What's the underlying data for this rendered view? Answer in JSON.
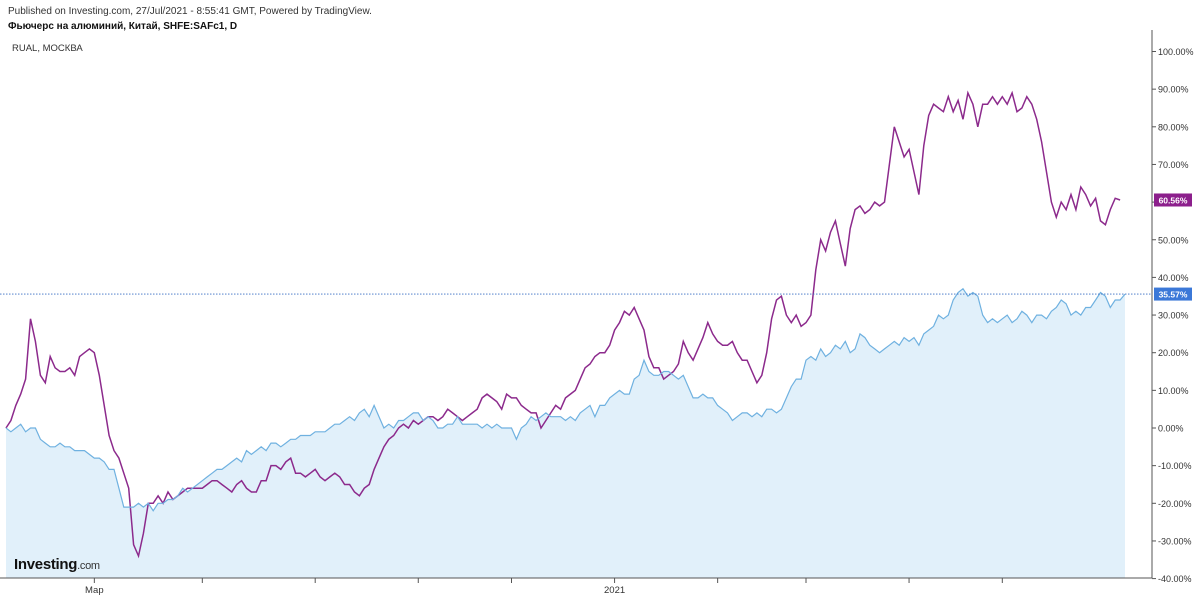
{
  "header": {
    "published": "Published on Investing.com, 27/Jul/2021 - 8:55:41 GMT, Powered by TradingView.",
    "symbol": "Фьючерс на алюминий, Китай, SHFE:SAFc1, D",
    "compare": "RUAL, МОСКВА"
  },
  "logo": {
    "brand": "Investing",
    "domain": ".com"
  },
  "chart_data": {
    "type": "line",
    "ylim": [
      -40,
      105
    ],
    "yticks": [
      "100.00%",
      "90.00%",
      "80.00%",
      "70.00%",
      "60.00%",
      "50.00%",
      "40.00%",
      "30.00%",
      "20.00%",
      "10.00%",
      "0.00%",
      "-10.00%",
      "-20.00%",
      "-30.00%",
      "-40.00%"
    ],
    "ytick_values": [
      100,
      90,
      80,
      70,
      60,
      50,
      40,
      30,
      20,
      10,
      0,
      -10,
      -20,
      -30,
      -40
    ],
    "x_labels": [
      {
        "label": "Мар",
        "i": 18
      },
      {
        "label": "2021",
        "i": 124
      }
    ],
    "x_tick_indices": [
      18,
      40,
      63,
      84,
      103,
      124,
      145,
      163,
      184,
      203
    ],
    "series": [
      {
        "name": "Фьючерс на алюминий, Китай, SHFE:SAFc1, D",
        "color": "#6fb1e0",
        "fill": "#e1f0fa",
        "last_label": "35.57%",
        "last_value": 35.57,
        "values": [
          0,
          -1,
          0,
          1,
          -1,
          0,
          0,
          -3,
          -4,
          -5,
          -5,
          -4,
          -5,
          -5,
          -6,
          -6,
          -6,
          -7,
          -8,
          -8,
          -9,
          -11,
          -11,
          -16,
          -21,
          -21,
          -21,
          -20,
          -21,
          -20,
          -22,
          -20,
          -20,
          -19,
          -19,
          -18,
          -16,
          -17,
          -16,
          -15,
          -14,
          -13,
          -12,
          -11,
          -11,
          -10,
          -9,
          -8,
          -9,
          -6,
          -7,
          -6,
          -5,
          -6,
          -4,
          -4,
          -5,
          -4,
          -3,
          -3,
          -2,
          -2,
          -2,
          -1,
          -1,
          -1,
          0,
          1,
          1,
          2,
          3,
          2,
          4,
          5,
          3,
          6,
          3,
          0,
          1,
          0,
          2,
          2,
          3,
          4,
          4,
          2,
          3,
          2,
          0,
          0,
          1,
          1,
          3,
          1,
          1,
          1,
          1,
          0,
          1,
          0,
          1,
          0,
          0,
          0,
          -3,
          0,
          1,
          3,
          2,
          3,
          4,
          3,
          3,
          3,
          2,
          3,
          2,
          4,
          5,
          6,
          3,
          6,
          6,
          8,
          9,
          10,
          9,
          9,
          13,
          14,
          18,
          15,
          14,
          14,
          15,
          15,
          14,
          13,
          14,
          11,
          8,
          8,
          9,
          8,
          8,
          6,
          5,
          4,
          2,
          3,
          4,
          4,
          3,
          4,
          3,
          5,
          5,
          4,
          5,
          8,
          11,
          13,
          13,
          18,
          19,
          18,
          21,
          19,
          20,
          22,
          21,
          23,
          20,
          21,
          25,
          24,
          22,
          21,
          20,
          21,
          22,
          23,
          22,
          24,
          23,
          24,
          22,
          25,
          26,
          27,
          30,
          29,
          30,
          34,
          36,
          37,
          35,
          36,
          35,
          30,
          28,
          29,
          28,
          29,
          30,
          28,
          29,
          31,
          30,
          28,
          30,
          30,
          29,
          31,
          32,
          34,
          33,
          30,
          31,
          30,
          32,
          32,
          34,
          36,
          35,
          32,
          34,
          34,
          35.57
        ]
      },
      {
        "name": "RUAL, МОСКВА",
        "color": "#8c2a8c",
        "fill_color": "#b48ec0",
        "last_label": "60.56%",
        "last_value": 60.56,
        "values": [
          0,
          2,
          6,
          9,
          13,
          29,
          23,
          14,
          12,
          19,
          16,
          15,
          15,
          16,
          14,
          19,
          20,
          21,
          20,
          14,
          6,
          -2,
          -6,
          -8,
          -12,
          -16,
          -31,
          -34,
          -28,
          -20,
          -20,
          -18,
          -20,
          -17,
          -19,
          -18,
          -17,
          -16,
          -16,
          -16,
          -16,
          -15,
          -14,
          -14,
          -15,
          -16,
          -17,
          -15,
          -14,
          -16,
          -17,
          -17,
          -14,
          -14,
          -10,
          -10,
          -11,
          -9,
          -8,
          -12,
          -12,
          -13,
          -12,
          -11,
          -13,
          -14,
          -13,
          -12,
          -13,
          -15,
          -15,
          -17,
          -18,
          -16,
          -15,
          -11,
          -8,
          -5,
          -3,
          -2,
          0,
          1,
          0,
          2,
          1,
          2,
          3,
          3,
          2,
          3,
          5,
          4,
          3,
          2,
          3,
          4,
          5,
          8,
          9,
          8,
          7,
          5,
          9,
          8,
          8,
          6,
          5,
          4,
          4,
          0,
          2,
          4,
          6,
          5,
          8,
          9,
          10,
          13,
          16,
          17,
          19,
          20,
          20,
          22,
          26,
          28,
          31,
          30,
          32,
          29,
          26,
          19,
          16,
          16,
          13,
          14,
          15,
          17,
          23,
          20,
          18,
          21,
          24,
          28,
          25,
          23,
          22,
          22,
          23,
          20,
          18,
          18,
          15,
          12,
          14,
          20,
          29,
          34,
          35,
          30,
          28,
          30,
          27,
          28,
          30,
          42,
          50,
          47,
          52,
          55,
          49,
          43,
          53,
          58,
          59,
          57,
          58,
          60,
          59,
          60,
          70,
          80,
          76,
          72,
          74,
          68,
          62,
          75,
          83,
          86,
          85,
          84,
          88,
          84,
          87,
          82,
          89,
          86,
          80,
          86,
          86,
          88,
          86,
          88,
          86,
          89,
          84,
          85,
          88,
          86,
          82,
          76,
          68,
          60,
          56,
          60,
          58,
          62,
          58,
          64,
          62,
          59,
          61,
          55,
          54,
          58,
          61,
          60.56
        ]
      }
    ],
    "reference_line": {
      "value": 35.57,
      "style": "dotted"
    }
  }
}
